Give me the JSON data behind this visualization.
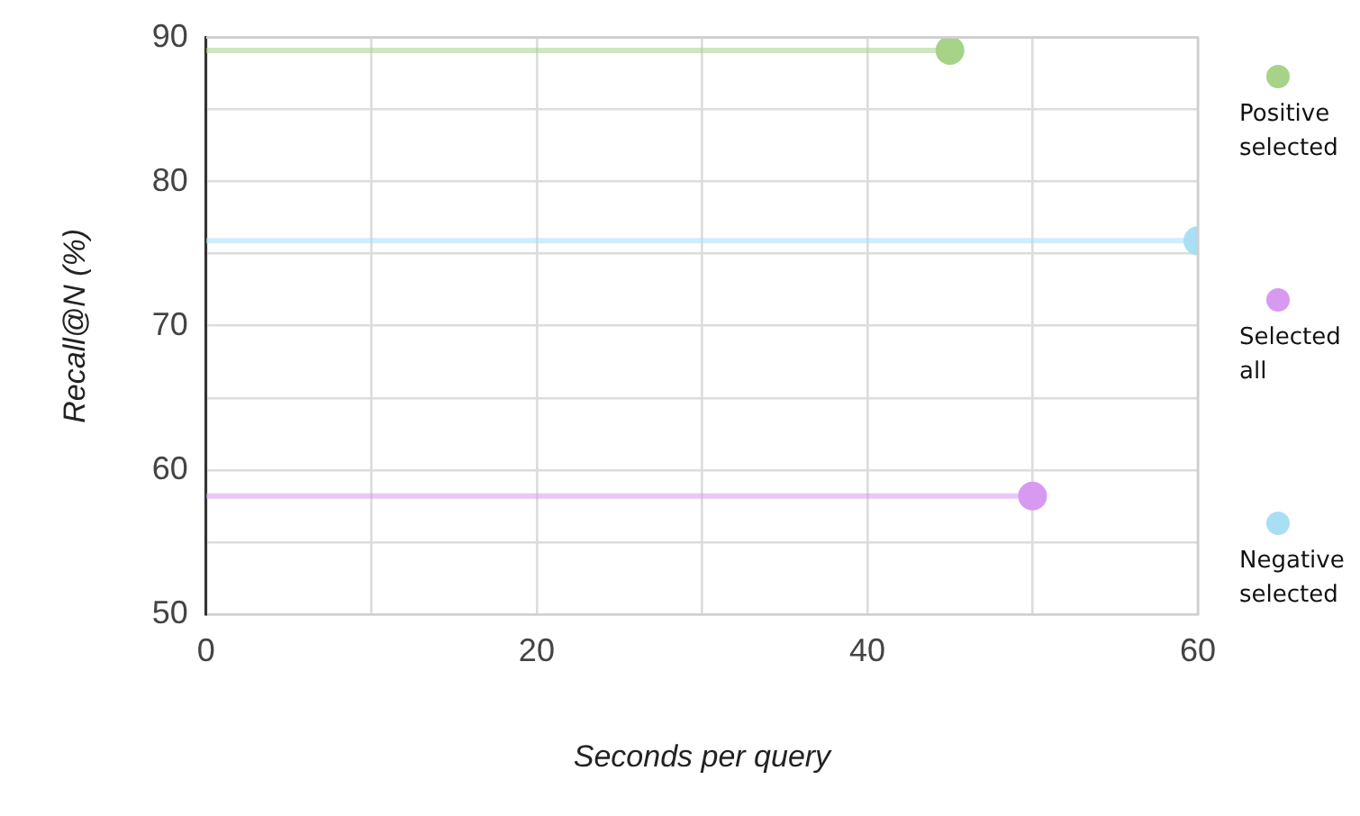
{
  "chart_data": {
    "type": "line",
    "xlabel": "Seconds per query",
    "ylabel": "Recall@N (%)",
    "series": [
      {
        "name": "Positive selected",
        "color": "#a6d388",
        "x": [
          0,
          45
        ],
        "values": [
          89.1,
          89.1
        ]
      },
      {
        "name": "Selected all",
        "color": "#d79af0",
        "x": [
          0,
          50
        ],
        "values": [
          58.2,
          58.2
        ]
      },
      {
        "name": "Negative selected",
        "color": "#a8dff5",
        "x": [
          0,
          60
        ],
        "values": [
          75.9,
          75.9
        ]
      }
    ],
    "xlim": [
      0,
      60
    ],
    "xticks": [
      0,
      {
        "value": 10,
        "label": null
      },
      20,
      {
        "value": 30,
        "label": null
      },
      40,
      {
        "value": 50,
        "label": null
      },
      60
    ],
    "ylim": [
      50,
      90
    ],
    "yticks": [
      50,
      {
        "value": 55,
        "label": null
      },
      60,
      {
        "value": 65,
        "label": null
      },
      70,
      {
        "value": 75,
        "label": null
      },
      80,
      {
        "value": 85,
        "label": null
      },
      90
    ],
    "grid": true,
    "legend": "right",
    "marker": "circle",
    "line_style": "solid"
  }
}
